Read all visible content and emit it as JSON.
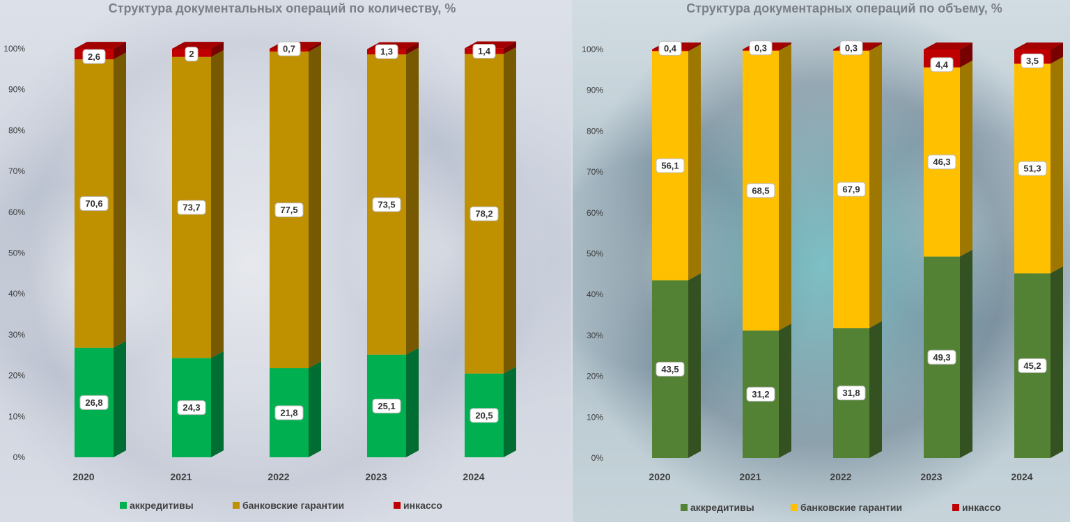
{
  "chart_data": [
    {
      "type": "bar",
      "stacked": true,
      "title": "Структура документальных операций по количеству, %",
      "categories": [
        "2020",
        "2021",
        "2022",
        "2023",
        "2024"
      ],
      "ylim": [
        0,
        100
      ],
      "yticks": [
        "0%",
        "10%",
        "20%",
        "30%",
        "40%",
        "50%",
        "60%",
        "70%",
        "80%",
        "90%",
        "100%"
      ],
      "series": [
        {
          "name": "аккредитивы",
          "color": "#00b050",
          "values": [
            26.8,
            24.3,
            21.8,
            25.1,
            20.5
          ],
          "labels": [
            "26,8",
            "24,3",
            "21,8",
            "25,1",
            "20,5"
          ]
        },
        {
          "name": "банковские гарантии",
          "color": "#bf9000",
          "values": [
            70.6,
            73.7,
            77.5,
            73.5,
            78.2
          ],
          "labels": [
            "70,6",
            "73,7",
            "77,5",
            "73,5",
            "78,2"
          ]
        },
        {
          "name": "инкассо",
          "color": "#c00000",
          "values": [
            2.6,
            2,
            0.7,
            1.3,
            1.4
          ],
          "labels": [
            "2,6",
            "2",
            "0,7",
            "1,3",
            "1,4"
          ]
        }
      ],
      "legend": "bottom"
    },
    {
      "type": "bar",
      "stacked": true,
      "title": "Структура документарных операций по объему, %",
      "categories": [
        "2020",
        "2021",
        "2022",
        "2023",
        "2024"
      ],
      "ylim": [
        0,
        100
      ],
      "yticks": [
        "0%",
        "10%",
        "20%",
        "30%",
        "40%",
        "50%",
        "60%",
        "70%",
        "80%",
        "90%",
        "100%"
      ],
      "series": [
        {
          "name": "аккредитивы",
          "color": "#548235",
          "values": [
            43.5,
            31.2,
            31.8,
            49.3,
            45.2
          ],
          "labels": [
            "43,5",
            "31,2",
            "31,8",
            "49,3",
            "45,2"
          ]
        },
        {
          "name": "банковские гарантии",
          "color": "#ffc000",
          "values": [
            56.1,
            68.5,
            67.9,
            46.3,
            51.3
          ],
          "labels": [
            "56,1",
            "68,5",
            "67,9",
            "46,3",
            "51,3"
          ]
        },
        {
          "name": "инкассо",
          "color": "#c00000",
          "values": [
            0.4,
            0.3,
            0.3,
            4.4,
            3.5
          ],
          "labels": [
            "0,4",
            "0,3",
            "0,3",
            "4,4",
            "3,5"
          ]
        }
      ],
      "legend": "bottom"
    }
  ]
}
